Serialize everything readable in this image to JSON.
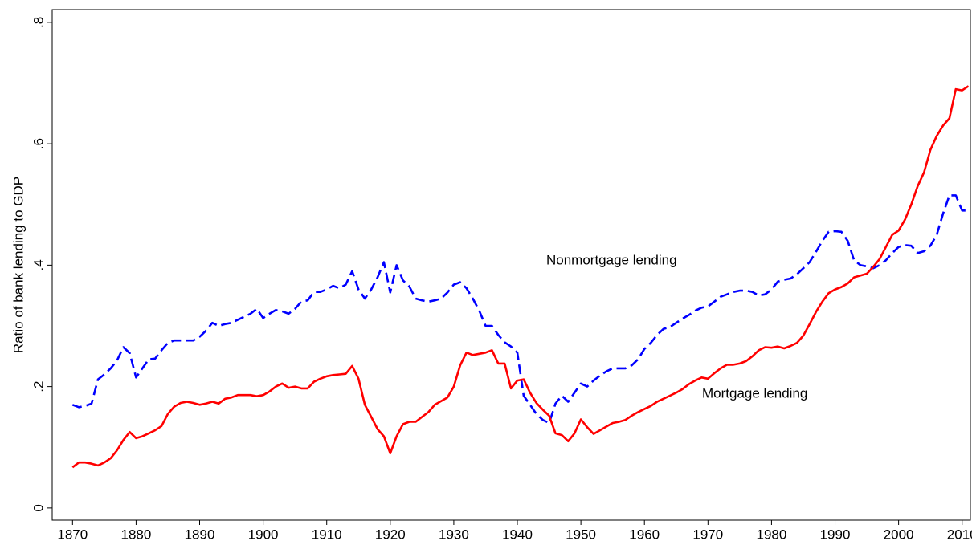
{
  "chart_data": {
    "type": "line",
    "ylabel": "Ratio of bank lending to GDP",
    "x": [
      1870,
      1871,
      1872,
      1873,
      1874,
      1875,
      1876,
      1877,
      1878,
      1879,
      1880,
      1881,
      1882,
      1883,
      1884,
      1885,
      1886,
      1887,
      1888,
      1889,
      1890,
      1891,
      1892,
      1893,
      1894,
      1895,
      1896,
      1897,
      1898,
      1899,
      1900,
      1901,
      1902,
      1903,
      1904,
      1905,
      1906,
      1907,
      1908,
      1909,
      1910,
      1911,
      1912,
      1913,
      1914,
      1915,
      1916,
      1917,
      1918,
      1919,
      1920,
      1921,
      1922,
      1923,
      1924,
      1925,
      1926,
      1927,
      1928,
      1929,
      1930,
      1931,
      1932,
      1933,
      1934,
      1935,
      1936,
      1937,
      1938,
      1939,
      1940,
      1941,
      1942,
      1943,
      1944,
      1945,
      1946,
      1947,
      1948,
      1949,
      1950,
      1951,
      1952,
      1953,
      1954,
      1955,
      1956,
      1957,
      1958,
      1959,
      1960,
      1961,
      1962,
      1963,
      1964,
      1965,
      1966,
      1967,
      1968,
      1969,
      1970,
      1971,
      1972,
      1973,
      1974,
      1975,
      1976,
      1977,
      1978,
      1979,
      1980,
      1981,
      1982,
      1983,
      1984,
      1985,
      1986,
      1987,
      1988,
      1989,
      1990,
      1991,
      1992,
      1993,
      1994,
      1995,
      1996,
      1997,
      1998,
      1999,
      2000,
      2001,
      2002,
      2003,
      2004,
      2005,
      2006,
      2007,
      2008,
      2009,
      2010,
      2011
    ],
    "series": [
      {
        "name": "Nonmortgage lending",
        "color": "#0000ff",
        "dash": true,
        "values": [
          0.17,
          0.166,
          0.168,
          0.172,
          0.212,
          0.22,
          0.23,
          0.243,
          0.265,
          0.255,
          0.215,
          0.23,
          0.245,
          0.246,
          0.26,
          0.272,
          0.276,
          0.276,
          0.276,
          0.276,
          0.282,
          0.292,
          0.305,
          0.3,
          0.303,
          0.305,
          0.31,
          0.315,
          0.32,
          0.328,
          0.313,
          0.32,
          0.326,
          0.324,
          0.32,
          0.328,
          0.34,
          0.342,
          0.356,
          0.356,
          0.36,
          0.366,
          0.362,
          0.368,
          0.39,
          0.36,
          0.345,
          0.36,
          0.38,
          0.405,
          0.355,
          0.4,
          0.375,
          0.365,
          0.345,
          0.342,
          0.34,
          0.342,
          0.345,
          0.355,
          0.368,
          0.372,
          0.362,
          0.345,
          0.325,
          0.3,
          0.3,
          0.285,
          0.273,
          0.266,
          0.256,
          0.185,
          0.17,
          0.155,
          0.145,
          0.14,
          0.172,
          0.185,
          0.175,
          0.19,
          0.205,
          0.2,
          0.21,
          0.218,
          0.225,
          0.23,
          0.23,
          0.23,
          0.235,
          0.245,
          0.262,
          0.272,
          0.285,
          0.295,
          0.298,
          0.305,
          0.312,
          0.318,
          0.325,
          0.33,
          0.332,
          0.34,
          0.348,
          0.352,
          0.356,
          0.358,
          0.358,
          0.356,
          0.35,
          0.352,
          0.36,
          0.373,
          0.376,
          0.378,
          0.385,
          0.395,
          0.405,
          0.422,
          0.44,
          0.455,
          0.456,
          0.455,
          0.44,
          0.408,
          0.4,
          0.398,
          0.395,
          0.4,
          0.408,
          0.42,
          0.43,
          0.433,
          0.432,
          0.42,
          0.423,
          0.432,
          0.45,
          0.485,
          0.515,
          0.515,
          0.49,
          0.49
        ]
      },
      {
        "name": "Mortgage lending",
        "color": "#ff0000",
        "dash": false,
        "values": [
          0.067,
          0.075,
          0.075,
          0.073,
          0.07,
          0.075,
          0.082,
          0.095,
          0.112,
          0.125,
          0.115,
          0.118,
          0.123,
          0.128,
          0.135,
          0.155,
          0.167,
          0.173,
          0.175,
          0.173,
          0.17,
          0.172,
          0.175,
          0.172,
          0.18,
          0.182,
          0.186,
          0.186,
          0.186,
          0.184,
          0.186,
          0.192,
          0.2,
          0.205,
          0.198,
          0.2,
          0.197,
          0.197,
          0.208,
          0.213,
          0.217,
          0.219,
          0.22,
          0.221,
          0.234,
          0.213,
          0.17,
          0.15,
          0.13,
          0.118,
          0.09,
          0.118,
          0.138,
          0.142,
          0.142,
          0.15,
          0.158,
          0.17,
          0.176,
          0.182,
          0.2,
          0.235,
          0.256,
          0.252,
          0.254,
          0.256,
          0.26,
          0.238,
          0.238,
          0.197,
          0.21,
          0.212,
          0.19,
          0.173,
          0.162,
          0.152,
          0.123,
          0.12,
          0.11,
          0.123,
          0.146,
          0.133,
          0.122,
          0.128,
          0.134,
          0.14,
          0.142,
          0.145,
          0.152,
          0.158,
          0.163,
          0.168,
          0.175,
          0.18,
          0.185,
          0.19,
          0.196,
          0.204,
          0.21,
          0.215,
          0.213,
          0.222,
          0.23,
          0.236,
          0.236,
          0.238,
          0.242,
          0.25,
          0.26,
          0.265,
          0.264,
          0.266,
          0.263,
          0.267,
          0.272,
          0.284,
          0.303,
          0.323,
          0.34,
          0.354,
          0.36,
          0.364,
          0.37,
          0.38,
          0.383,
          0.386,
          0.397,
          0.41,
          0.43,
          0.45,
          0.457,
          0.475,
          0.5,
          0.53,
          0.553,
          0.59,
          0.613,
          0.63,
          0.642,
          0.69,
          0.688,
          0.695
        ]
      }
    ],
    "xlim": [
      1866.8,
      2011.3
    ],
    "xticks": [
      1870,
      1880,
      1890,
      1900,
      1910,
      1920,
      1930,
      1940,
      1950,
      1960,
      1970,
      1980,
      1990,
      2000,
      2010
    ],
    "ylim": [
      -0.02,
      0.821
    ],
    "yticks": [
      0,
      {
        "value": 0.2,
        "label": ".2"
      },
      {
        "value": 0.4,
        "label": ".4"
      },
      {
        "value": 0.6,
        "label": ".6"
      },
      {
        "value": 0.8,
        "label": ".8"
      }
    ]
  }
}
